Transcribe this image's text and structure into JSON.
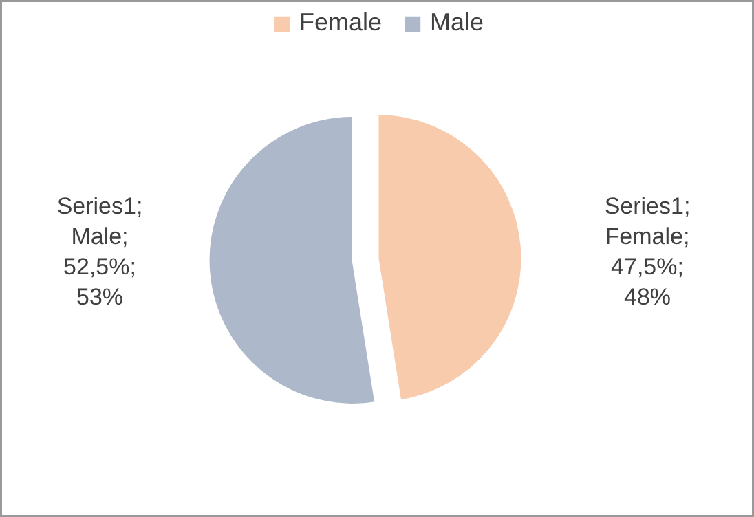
{
  "chart_data": {
    "type": "pie",
    "categories": [
      "Female",
      "Male"
    ],
    "values": [
      47.5,
      52.5
    ],
    "colors": [
      "#f8cbad",
      "#adb9ca"
    ],
    "value_labels": [
      "Series1;\nFemale;\n47,5%;\n48%",
      "Series1;\nMale;\n52,5%;\n53%"
    ],
    "legend": "top"
  }
}
